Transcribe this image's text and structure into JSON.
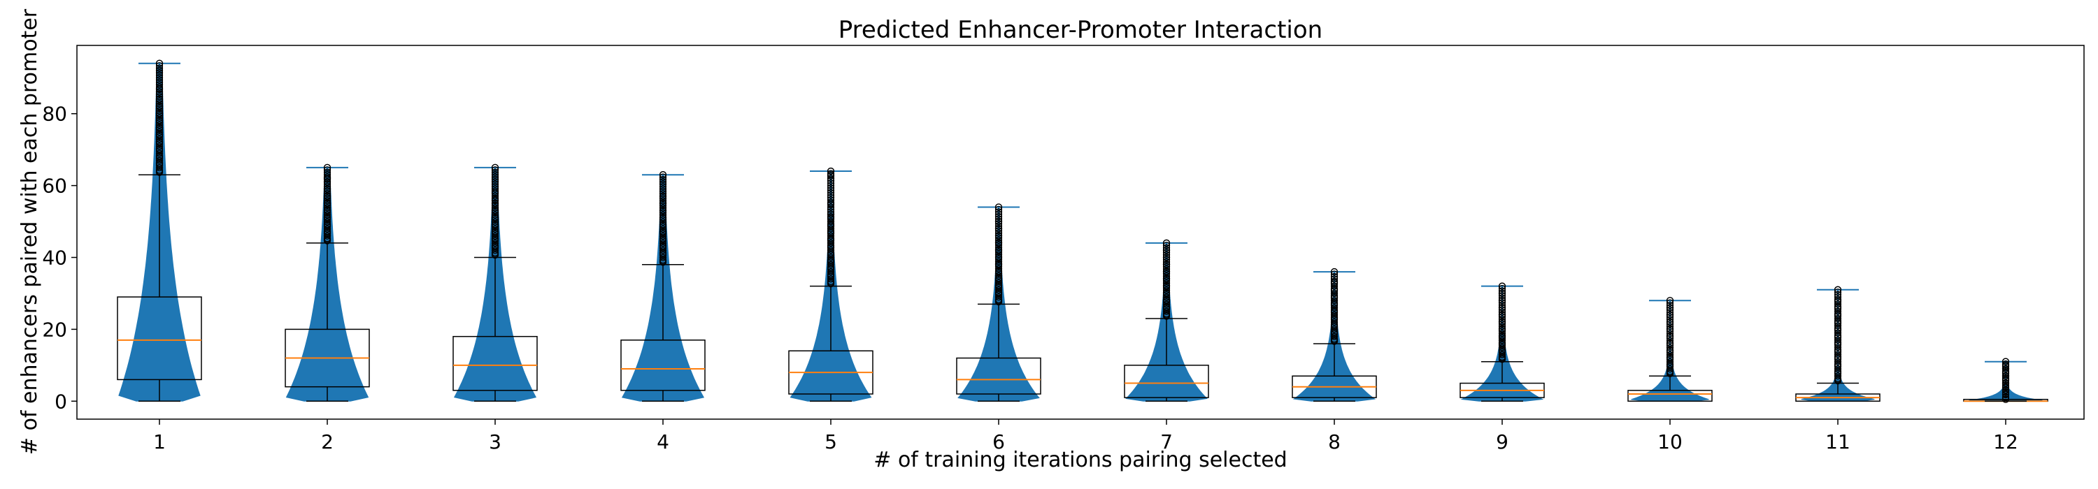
{
  "chart_data": {
    "type": "violin",
    "title": "Predicted Enhancer-Promoter Interaction",
    "xlabel": "# of training iterations pairing selected",
    "ylabel": "# of enhancers paired with each promoter",
    "categories": [
      "1",
      "2",
      "3",
      "4",
      "5",
      "6",
      "7",
      "8",
      "9",
      "10",
      "11",
      "12"
    ],
    "ylim": [
      -5,
      99
    ],
    "yticks": [
      0,
      20,
      40,
      60,
      80
    ],
    "grid": false,
    "colors": {
      "violin": "#1f77b4",
      "median": "#ff7f0e",
      "box": "#000000"
    },
    "series": [
      {
        "category": "1",
        "max": 94,
        "q1": 6,
        "median": 17,
        "q3": 29,
        "whisker_low": 0,
        "whisker_high": 63,
        "mode": 0.5,
        "outliers": [
          64,
          66,
          68,
          70,
          72,
          74,
          76,
          78,
          80,
          82,
          84,
          87,
          94
        ]
      },
      {
        "category": "2",
        "max": 65,
        "q1": 4,
        "median": 12,
        "q3": 20,
        "whisker_low": 0,
        "whisker_high": 44,
        "mode": 0.5,
        "outliers": [
          45,
          47,
          49,
          51,
          53,
          55,
          57,
          59,
          61,
          62,
          65
        ]
      },
      {
        "category": "3",
        "max": 65,
        "q1": 3,
        "median": 10,
        "q3": 18,
        "whisker_low": 0,
        "whisker_high": 40,
        "mode": 0.5,
        "outliers": [
          41,
          43,
          45,
          47,
          49,
          51,
          53,
          55,
          56,
          58,
          65
        ]
      },
      {
        "category": "4",
        "max": 63,
        "q1": 3,
        "median": 9,
        "q3": 17,
        "whisker_low": 0,
        "whisker_high": 38,
        "mode": 0.5,
        "outliers": [
          39,
          41,
          43,
          45,
          47,
          49,
          51,
          53,
          55,
          57,
          63
        ]
      },
      {
        "category": "5",
        "max": 64,
        "q1": 2,
        "median": 8,
        "q3": 14,
        "whisker_low": 0,
        "whisker_high": 32,
        "mode": 0.4,
        "outliers": [
          33,
          35,
          37,
          39,
          41,
          43,
          45,
          47,
          49,
          51,
          52,
          55,
          63,
          64
        ]
      },
      {
        "category": "6",
        "max": 54,
        "q1": 2,
        "median": 6,
        "q3": 12,
        "whisker_low": 0,
        "whisker_high": 27,
        "mode": 0.4,
        "outliers": [
          28,
          30,
          32,
          34,
          36,
          38,
          40,
          42,
          44,
          46,
          48,
          50,
          54
        ]
      },
      {
        "category": "7",
        "max": 44,
        "q1": 1,
        "median": 5,
        "q3": 10,
        "whisker_low": 0,
        "whisker_high": 23,
        "mode": 0.3,
        "outliers": [
          24,
          26,
          28,
          30,
          32,
          34,
          36,
          38,
          40,
          42,
          44
        ]
      },
      {
        "category": "8",
        "max": 36,
        "q1": 1,
        "median": 4,
        "q3": 7,
        "whisker_low": 0,
        "whisker_high": 16,
        "mode": 0.3,
        "outliers": [
          17,
          19,
          21,
          23,
          25,
          27,
          29,
          31,
          33,
          36
        ]
      },
      {
        "category": "9",
        "max": 32,
        "q1": 1,
        "median": 3,
        "q3": 5,
        "whisker_low": 0,
        "whisker_high": 11,
        "mode": 0.3,
        "outliers": [
          12,
          14,
          16,
          18,
          20,
          22,
          24,
          26,
          28,
          30,
          32
        ]
      },
      {
        "category": "10",
        "max": 28,
        "q1": 0,
        "median": 2,
        "q3": 3,
        "whisker_low": 0,
        "whisker_high": 7,
        "mode": 0.2,
        "outliers": [
          8,
          10,
          12,
          14,
          16,
          18,
          20,
          22,
          24,
          26,
          28
        ]
      },
      {
        "category": "11",
        "max": 31,
        "q1": 0,
        "median": 1,
        "q3": 2,
        "whisker_low": 0,
        "whisker_high": 5,
        "mode": 0.2,
        "outliers": [
          6,
          8,
          10,
          12,
          14,
          16,
          18,
          20,
          22,
          24,
          26,
          28,
          31
        ]
      },
      {
        "category": "12",
        "max": 11,
        "q1": 0,
        "median": 0,
        "q3": 0.5,
        "whisker_low": 0,
        "whisker_high": 0.5,
        "mode": 0.0,
        "outliers": [
          1,
          2,
          3,
          4,
          5,
          6,
          7,
          8,
          9,
          10,
          11
        ]
      }
    ]
  }
}
